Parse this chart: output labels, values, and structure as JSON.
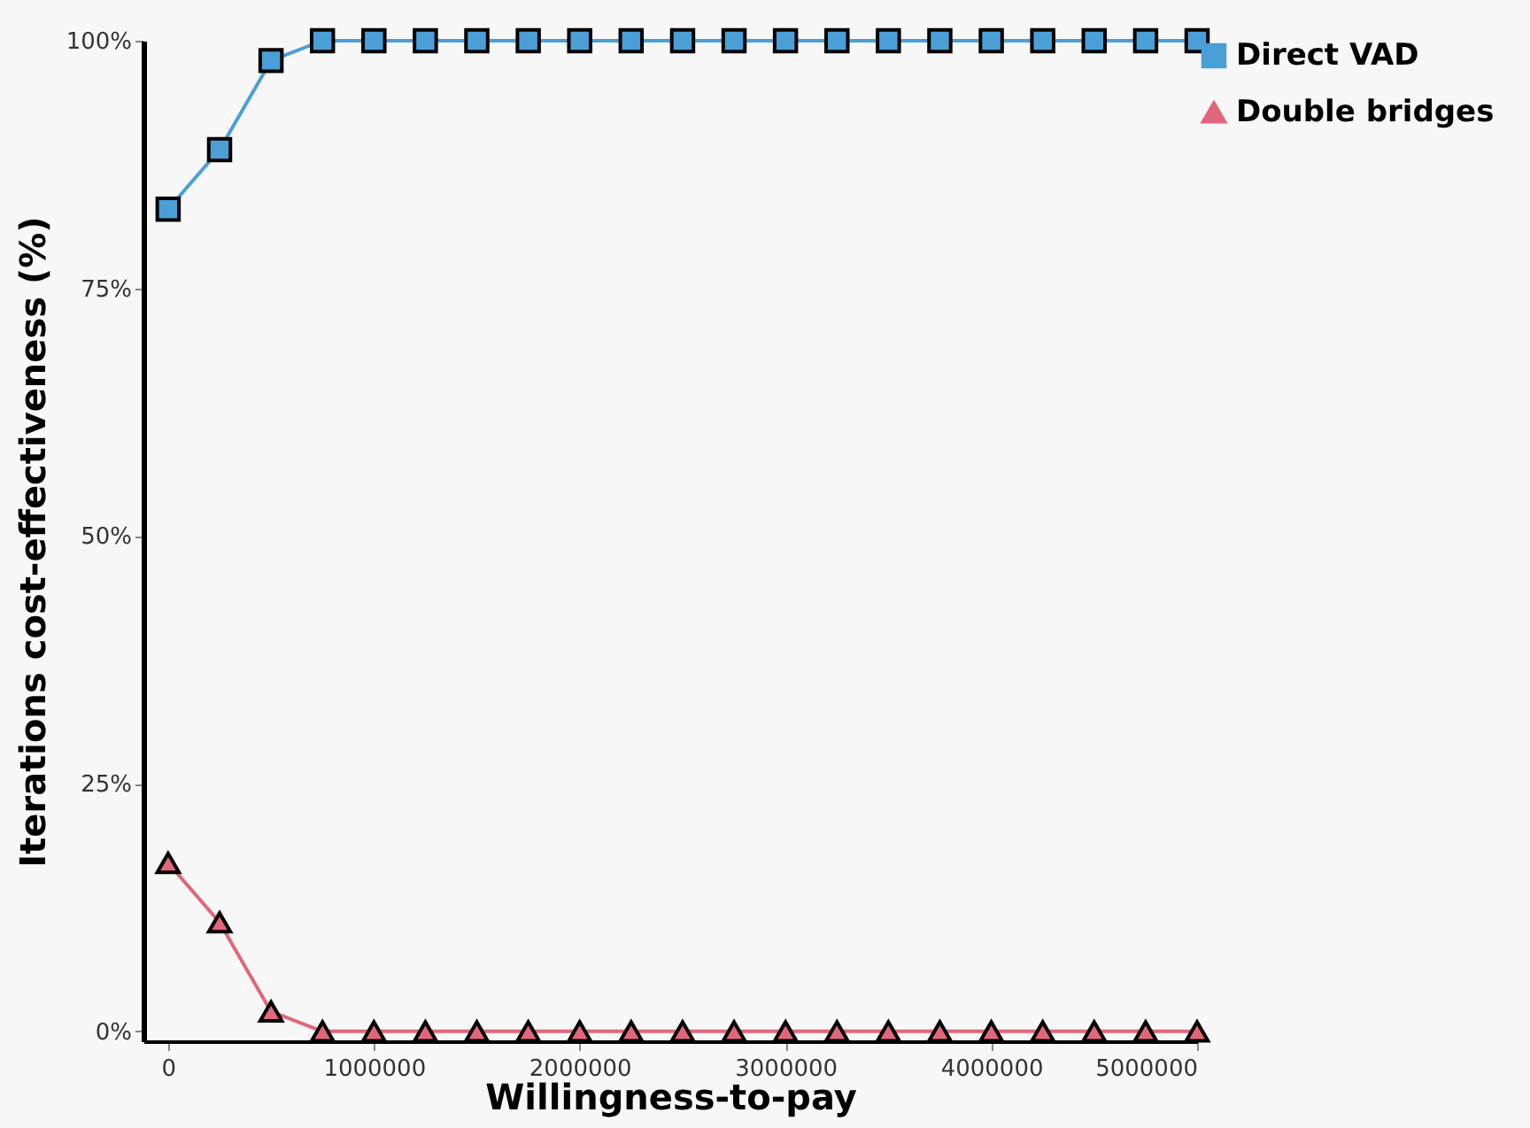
{
  "chart_data": {
    "type": "line",
    "xlabel": "Willingness-to-pay",
    "ylabel": "Iterations cost-effectiveness (%)",
    "x": [
      0,
      250000,
      500000,
      750000,
      1000000,
      1250000,
      1500000,
      1750000,
      2000000,
      2250000,
      2500000,
      2750000,
      3000000,
      3250000,
      3500000,
      3750000,
      4000000,
      4250000,
      4500000,
      4750000,
      5000000
    ],
    "series": [
      {
        "name": "Direct VAD",
        "color": "#4a9fd6",
        "marker": "square",
        "values": [
          83,
          89,
          98,
          100,
          100,
          100,
          100,
          100,
          100,
          100,
          100,
          100,
          100,
          100,
          100,
          100,
          100,
          100,
          100,
          100,
          100
        ]
      },
      {
        "name": "Double bridges",
        "color": "#e0677a",
        "marker": "triangle",
        "values": [
          17,
          11,
          2,
          0,
          0,
          0,
          0,
          0,
          0,
          0,
          0,
          0,
          0,
          0,
          0,
          0,
          0,
          0,
          0,
          0,
          0
        ]
      }
    ],
    "xlim": [
      -120000,
      5000000
    ],
    "xticks": [
      0,
      1000000,
      2000000,
      3000000,
      4000000,
      5000000
    ],
    "ylim": [
      -1,
      100
    ],
    "yticks": [
      {
        "value": 0,
        "label": "0%"
      },
      {
        "value": 25,
        "label": "25%"
      },
      {
        "value": 50,
        "label": "50%"
      },
      {
        "value": 75,
        "label": "75%"
      },
      {
        "value": 100,
        "label": "100%"
      }
    ],
    "grid": false,
    "legend": "right",
    "line_style": "solid"
  }
}
